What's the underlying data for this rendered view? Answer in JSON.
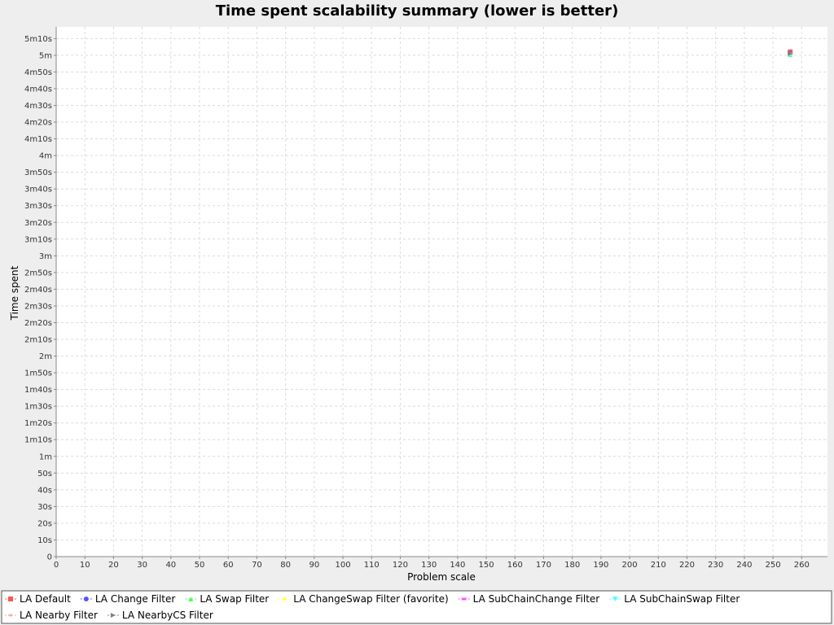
{
  "chart_data": {
    "type": "scatter",
    "title": "Time spent scalability summary (lower is better)",
    "xlabel": "Problem scale",
    "ylabel": "Time spent",
    "xlim": [
      0,
      269
    ],
    "ylim": [
      0,
      317
    ],
    "x_ticks": [
      {
        "value": 0,
        "label": "0"
      },
      {
        "value": 10,
        "label": "10"
      },
      {
        "value": 20,
        "label": "20"
      },
      {
        "value": 30,
        "label": "30"
      },
      {
        "value": 40,
        "label": "40"
      },
      {
        "value": 50,
        "label": "50"
      },
      {
        "value": 60,
        "label": "60"
      },
      {
        "value": 70,
        "label": "70"
      },
      {
        "value": 80,
        "label": "80"
      },
      {
        "value": 90,
        "label": "90"
      },
      {
        "value": 100,
        "label": "100"
      },
      {
        "value": 110,
        "label": "110"
      },
      {
        "value": 120,
        "label": "120"
      },
      {
        "value": 130,
        "label": "130"
      },
      {
        "value": 140,
        "label": "140"
      },
      {
        "value": 150,
        "label": "150"
      },
      {
        "value": 160,
        "label": "160"
      },
      {
        "value": 170,
        "label": "170"
      },
      {
        "value": 180,
        "label": "180"
      },
      {
        "value": 190,
        "label": "190"
      },
      {
        "value": 200,
        "label": "200"
      },
      {
        "value": 210,
        "label": "210"
      },
      {
        "value": 220,
        "label": "220"
      },
      {
        "value": 230,
        "label": "230"
      },
      {
        "value": 240,
        "label": "240"
      },
      {
        "value": 250,
        "label": "250"
      },
      {
        "value": 260,
        "label": "260"
      }
    ],
    "y_ticks": [
      {
        "value": 0,
        "label": "0"
      },
      {
        "value": 10,
        "label": "10s"
      },
      {
        "value": 20,
        "label": "20s"
      },
      {
        "value": 30,
        "label": "30s"
      },
      {
        "value": 40,
        "label": "40s"
      },
      {
        "value": 50,
        "label": "50s"
      },
      {
        "value": 60,
        "label": "1m"
      },
      {
        "value": 70,
        "label": "1m10s"
      },
      {
        "value": 80,
        "label": "1m20s"
      },
      {
        "value": 90,
        "label": "1m30s"
      },
      {
        "value": 100,
        "label": "1m40s"
      },
      {
        "value": 110,
        "label": "1m50s"
      },
      {
        "value": 120,
        "label": "2m"
      },
      {
        "value": 130,
        "label": "2m10s"
      },
      {
        "value": 140,
        "label": "2m20s"
      },
      {
        "value": 150,
        "label": "2m30s"
      },
      {
        "value": 160,
        "label": "2m40s"
      },
      {
        "value": 170,
        "label": "2m50s"
      },
      {
        "value": 180,
        "label": "3m"
      },
      {
        "value": 190,
        "label": "3m10s"
      },
      {
        "value": 200,
        "label": "3m20s"
      },
      {
        "value": 210,
        "label": "3m30s"
      },
      {
        "value": 220,
        "label": "3m40s"
      },
      {
        "value": 230,
        "label": "3m50s"
      },
      {
        "value": 240,
        "label": "4m"
      },
      {
        "value": 250,
        "label": "4m10s"
      },
      {
        "value": 260,
        "label": "4m20s"
      },
      {
        "value": 270,
        "label": "4m30s"
      },
      {
        "value": 280,
        "label": "4m40s"
      },
      {
        "value": 290,
        "label": "4m50s"
      },
      {
        "value": 300,
        "label": "5m"
      },
      {
        "value": 310,
        "label": "5m10s"
      }
    ],
    "grid": true,
    "legend_position": "bottom",
    "series": [
      {
        "name": "LA Default",
        "color": "#ff5555",
        "marker": "square",
        "points": [
          {
            "x": 256,
            "y": 302
          }
        ]
      },
      {
        "name": "LA Change Filter",
        "color": "#5555ff",
        "marker": "circle",
        "points": [
          {
            "x": 256,
            "y": 301
          }
        ]
      },
      {
        "name": "LA Swap Filter",
        "color": "#55ff55",
        "marker": "triangle-up",
        "points": [
          {
            "x": 256,
            "y": 300.5
          }
        ]
      },
      {
        "name": "LA ChangeSwap Filter (favorite)",
        "color": "#ffff55",
        "marker": "diamond",
        "points": [
          {
            "x": 256,
            "y": 300.5
          }
        ]
      },
      {
        "name": "LA SubChainChange Filter",
        "color": "#ff55ff",
        "marker": "rect-h",
        "points": [
          {
            "x": 256,
            "y": 301
          }
        ]
      },
      {
        "name": "LA SubChainSwap Filter",
        "color": "#55ffff",
        "marker": "triangle-down",
        "points": [
          {
            "x": 256,
            "y": 300
          }
        ]
      },
      {
        "name": "LA Nearby Filter",
        "color": "#ffafaf",
        "marker": "ellipse-h",
        "points": [
          {
            "x": 256,
            "y": 301
          }
        ]
      },
      {
        "name": "LA NearbyCS Filter",
        "color": "#808080",
        "marker": "triangle-right",
        "points": [
          {
            "x": 256,
            "y": 301
          }
        ]
      }
    ]
  }
}
